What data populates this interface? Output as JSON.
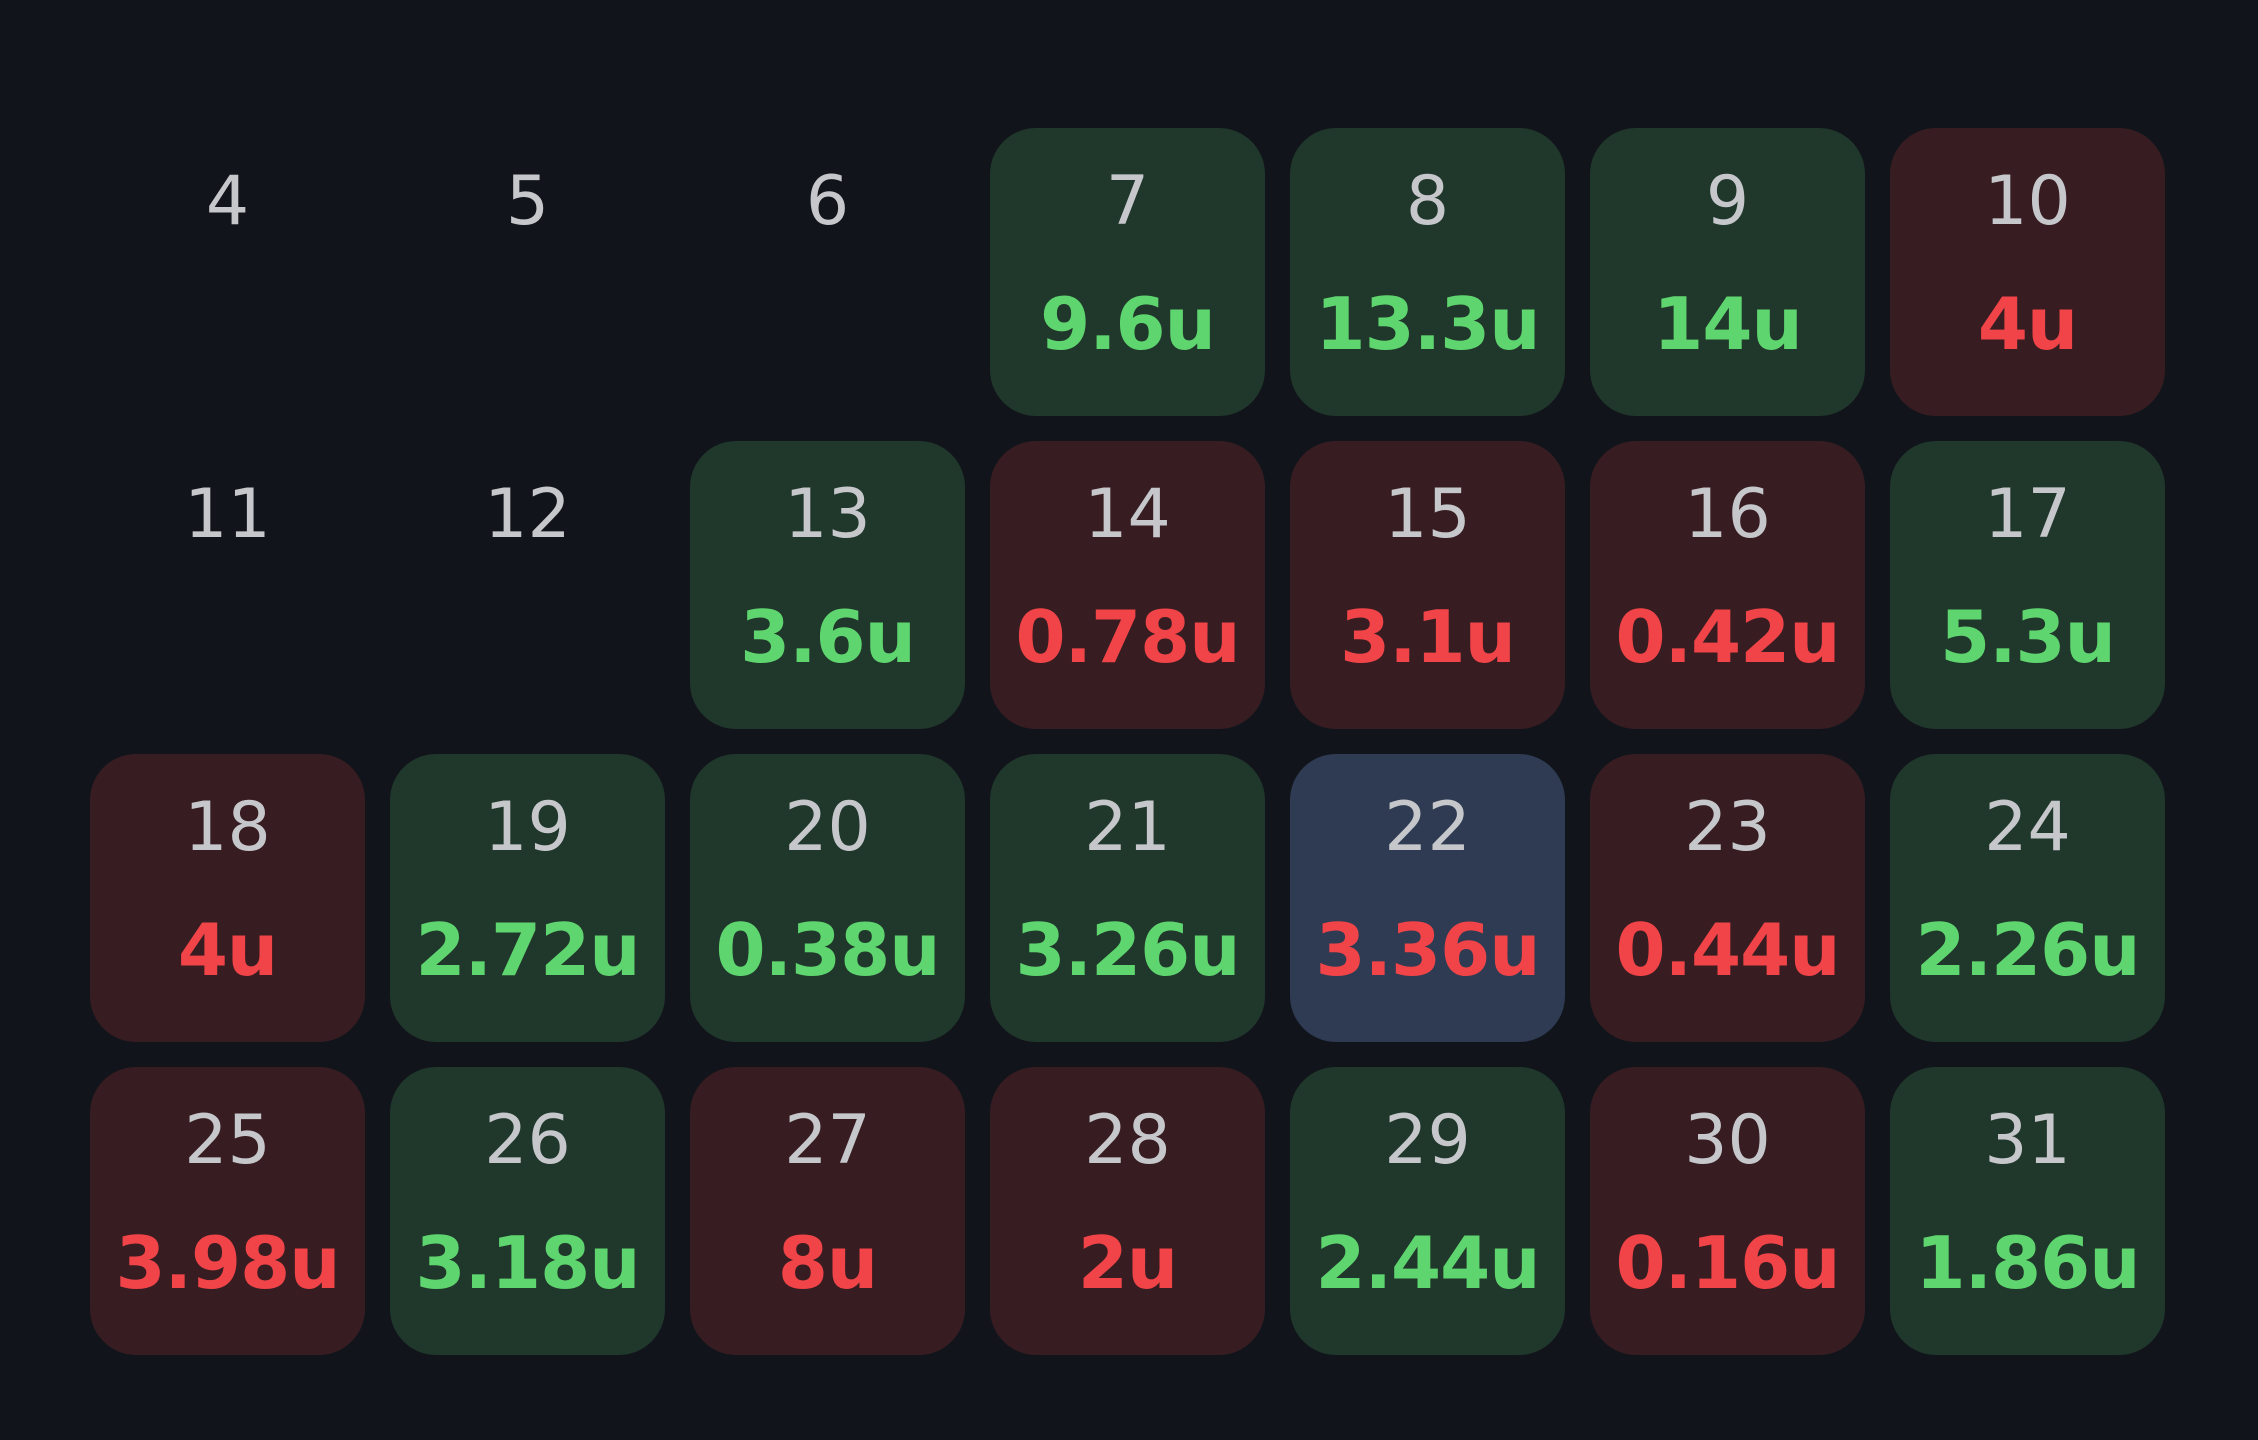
{
  "colors": {
    "background": "#11151b",
    "win_cell": "#20372b",
    "loss_cell": "#371d21",
    "today_cell": "#2e3b52",
    "positive_text": "#5fd56f",
    "negative_text": "#f04448",
    "day_number_text": "#c6c7cb"
  },
  "calendar": {
    "days": [
      {
        "day": "4",
        "value": "",
        "result": "none"
      },
      {
        "day": "5",
        "value": "",
        "result": "none"
      },
      {
        "day": "6",
        "value": "",
        "result": "none"
      },
      {
        "day": "7",
        "value": "9.6u",
        "result": "win"
      },
      {
        "day": "8",
        "value": "13.3u",
        "result": "win"
      },
      {
        "day": "9",
        "value": "14u",
        "result": "win"
      },
      {
        "day": "10",
        "value": "4u",
        "result": "loss"
      },
      {
        "day": "11",
        "value": "",
        "result": "none"
      },
      {
        "day": "12",
        "value": "",
        "result": "none"
      },
      {
        "day": "13",
        "value": "3.6u",
        "result": "win"
      },
      {
        "day": "14",
        "value": "0.78u",
        "result": "loss"
      },
      {
        "day": "15",
        "value": "3.1u",
        "result": "loss"
      },
      {
        "day": "16",
        "value": "0.42u",
        "result": "loss"
      },
      {
        "day": "17",
        "value": "5.3u",
        "result": "win"
      },
      {
        "day": "18",
        "value": "4u",
        "result": "loss"
      },
      {
        "day": "19",
        "value": "2.72u",
        "result": "win"
      },
      {
        "day": "20",
        "value": "0.38u",
        "result": "win"
      },
      {
        "day": "21",
        "value": "3.26u",
        "result": "win"
      },
      {
        "day": "22",
        "value": "3.36u",
        "result": "loss",
        "today": true
      },
      {
        "day": "23",
        "value": "0.44u",
        "result": "loss"
      },
      {
        "day": "24",
        "value": "2.26u",
        "result": "win"
      },
      {
        "day": "25",
        "value": "3.98u",
        "result": "loss"
      },
      {
        "day": "26",
        "value": "3.18u",
        "result": "win"
      },
      {
        "day": "27",
        "value": "8u",
        "result": "loss"
      },
      {
        "day": "28",
        "value": "2u",
        "result": "loss"
      },
      {
        "day": "29",
        "value": "2.44u",
        "result": "win"
      },
      {
        "day": "30",
        "value": "0.16u",
        "result": "loss"
      },
      {
        "day": "31",
        "value": "1.86u",
        "result": "win"
      }
    ]
  }
}
